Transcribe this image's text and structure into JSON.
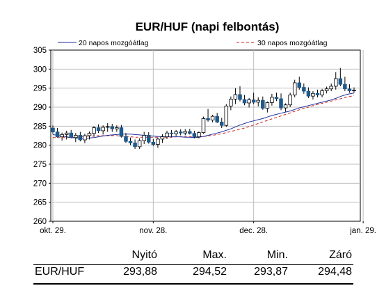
{
  "chart_data": {
    "type": "candlestick",
    "title": "EUR/HUF (napi felbontás)",
    "ylim": [
      260,
      305
    ],
    "yticks": [
      260,
      265,
      270,
      275,
      280,
      285,
      290,
      295,
      300,
      305
    ],
    "xticks": [
      {
        "label": "okt. 29.",
        "index": 0
      },
      {
        "label": "nov. 28.",
        "index": 22
      },
      {
        "label": "dec. 28.",
        "index": 44
      },
      {
        "label": "jan. 29.",
        "index": 68
      }
    ],
    "legend": {
      "placement": "top",
      "entries": [
        {
          "name": "20 napos mozgóátlag",
          "color": "#1f2f9a",
          "style": "solid"
        },
        {
          "name": "30 napos mozgóátlag",
          "color": "#cc2222",
          "style": "dashed"
        }
      ]
    },
    "candles": [
      [
        284.5,
        285.2,
        283.0,
        283.5
      ],
      [
        283.5,
        284.5,
        282.0,
        282.2
      ],
      [
        282.2,
        283.3,
        281.2,
        282.8
      ],
      [
        282.8,
        283.8,
        281.5,
        283.2
      ],
      [
        283.2,
        284.0,
        281.8,
        282.0
      ],
      [
        282.0,
        283.2,
        280.8,
        282.6
      ],
      [
        282.6,
        283.5,
        281.0,
        281.4
      ],
      [
        281.4,
        283.0,
        280.5,
        282.5
      ],
      [
        282.5,
        283.6,
        281.5,
        283.1
      ],
      [
        283.1,
        285.0,
        282.2,
        284.6
      ],
      [
        284.6,
        285.5,
        283.2,
        283.8
      ],
      [
        283.8,
        285.2,
        282.8,
        284.7
      ],
      [
        284.7,
        285.8,
        283.5,
        284.9
      ],
      [
        284.9,
        285.6,
        283.5,
        284.3
      ],
      [
        284.3,
        285.2,
        283.5,
        284.6
      ],
      [
        284.6,
        285.3,
        282.0,
        282.3
      ],
      [
        282.3,
        283.2,
        280.6,
        281.0
      ],
      [
        281.0,
        282.0,
        280.0,
        280.6
      ],
      [
        280.6,
        281.5,
        279.0,
        279.6
      ],
      [
        279.6,
        281.8,
        279.0,
        281.2
      ],
      [
        281.2,
        283.5,
        280.3,
        282.6
      ],
      [
        282.6,
        283.4,
        280.4,
        280.8
      ],
      [
        280.8,
        281.6,
        279.8,
        280.2
      ],
      [
        280.2,
        282.0,
        279.3,
        281.6
      ],
      [
        281.6,
        282.9,
        280.6,
        282.2
      ],
      [
        282.2,
        283.8,
        281.6,
        283.2
      ],
      [
        283.2,
        284.0,
        282.2,
        283.0
      ],
      [
        283.0,
        284.0,
        282.4,
        283.5
      ],
      [
        283.5,
        284.2,
        282.6,
        283.2
      ],
      [
        283.2,
        284.2,
        282.6,
        283.6
      ],
      [
        283.6,
        284.3,
        282.8,
        283.1
      ],
      [
        283.1,
        283.8,
        281.8,
        282.2
      ],
      [
        282.2,
        283.6,
        281.8,
        283.3
      ],
      [
        283.3,
        287.5,
        283.0,
        287.0
      ],
      [
        287.0,
        289.5,
        286.2,
        286.6
      ],
      [
        286.6,
        288.0,
        286.0,
        287.6
      ],
      [
        287.6,
        288.5,
        285.8,
        286.1
      ],
      [
        286.1,
        287.2,
        284.5,
        285.2
      ],
      [
        285.2,
        290.8,
        284.8,
        290.3
      ],
      [
        290.3,
        292.8,
        289.2,
        292.1
      ],
      [
        292.1,
        295.0,
        290.8,
        293.3
      ],
      [
        293.3,
        295.5,
        291.5,
        292.0
      ],
      [
        292.0,
        293.2,
        290.5,
        291.1
      ],
      [
        291.1,
        292.4,
        289.9,
        291.9
      ],
      [
        291.9,
        293.8,
        290.8,
        291.3
      ],
      [
        291.3,
        292.6,
        290.2,
        291.8
      ],
      [
        291.8,
        292.8,
        289.3,
        289.7
      ],
      [
        289.7,
        291.5,
        288.6,
        291.2
      ],
      [
        291.2,
        293.5,
        290.4,
        292.6
      ],
      [
        292.6,
        293.8,
        291.6,
        292.2
      ],
      [
        292.2,
        293.6,
        289.2,
        289.8
      ],
      [
        289.8,
        291.0,
        288.8,
        290.6
      ],
      [
        290.6,
        293.8,
        290.0,
        293.2
      ],
      [
        293.2,
        297.2,
        292.6,
        296.4
      ],
      [
        296.4,
        298.0,
        294.6,
        295.2
      ],
      [
        295.2,
        296.2,
        293.5,
        294.2
      ],
      [
        294.2,
        295.2,
        292.4,
        292.9
      ],
      [
        292.9,
        294.2,
        292.0,
        293.6
      ],
      [
        293.6,
        294.6,
        292.6,
        293.2
      ],
      [
        293.2,
        294.8,
        292.6,
        294.3
      ],
      [
        294.3,
        295.4,
        293.6,
        294.8
      ],
      [
        294.8,
        296.2,
        294.2,
        295.5
      ],
      [
        295.5,
        299.2,
        294.6,
        297.5
      ],
      [
        297.5,
        300.3,
        295.5,
        296.0
      ],
      [
        296.0,
        298.0,
        294.2,
        294.8
      ],
      [
        294.8,
        296.0,
        293.8,
        294.3
      ],
      [
        294.3,
        295.2,
        293.8,
        294.5
      ]
    ],
    "ma20": [
      282.8,
      282.6,
      282.4,
      282.2,
      282.0,
      281.9,
      281.8,
      281.8,
      281.9,
      282.0,
      282.2,
      282.4,
      282.6,
      282.7,
      282.8,
      282.9,
      282.9,
      282.9,
      282.8,
      282.7,
      282.6,
      282.5,
      282.4,
      282.3,
      282.2,
      282.2,
      282.2,
      282.2,
      282.2,
      282.1,
      282.1,
      282.0,
      282.1,
      282.3,
      282.6,
      282.9,
      283.2,
      283.5,
      283.9,
      284.3,
      284.8,
      285.3,
      285.7,
      286.1,
      286.4,
      286.7,
      287.0,
      287.4,
      287.8,
      288.1,
      288.4,
      288.7,
      289.0,
      289.4,
      289.8,
      290.1,
      290.4,
      290.7,
      291.0,
      291.3,
      291.6,
      291.9,
      292.3,
      292.8,
      293.2,
      293.5,
      293.7
    ],
    "ma30": [
      282.0,
      282.0,
      282.0,
      282.0,
      282.1,
      282.1,
      282.2,
      282.3,
      282.4,
      282.4,
      282.5,
      282.5,
      282.5,
      282.5,
      282.5,
      282.4,
      282.3,
      282.2,
      282.1,
      282.1,
      282.1,
      282.1,
      282.1,
      282.1,
      282.1,
      282.1,
      282.1,
      282.2,
      282.2,
      282.2,
      282.2,
      282.2,
      282.2,
      282.3,
      282.4,
      282.6,
      282.8,
      283.0,
      283.3,
      283.6,
      283.9,
      284.2,
      284.5,
      284.9,
      285.3,
      285.7,
      286.1,
      286.5,
      286.9,
      287.3,
      287.7,
      288.1,
      288.5,
      288.9,
      289.3,
      289.7,
      290.0,
      290.4,
      290.7,
      291.0,
      291.3,
      291.6,
      291.9,
      292.2,
      292.5,
      292.8,
      293.0
    ]
  },
  "stats_table": {
    "headers": [
      "",
      "Nyitó",
      "Max.",
      "Min.",
      "Záró"
    ],
    "row": {
      "name": "EUR/HUF",
      "open": "293,88",
      "max": "294,52",
      "min": "293,87",
      "close": "294,48"
    }
  }
}
